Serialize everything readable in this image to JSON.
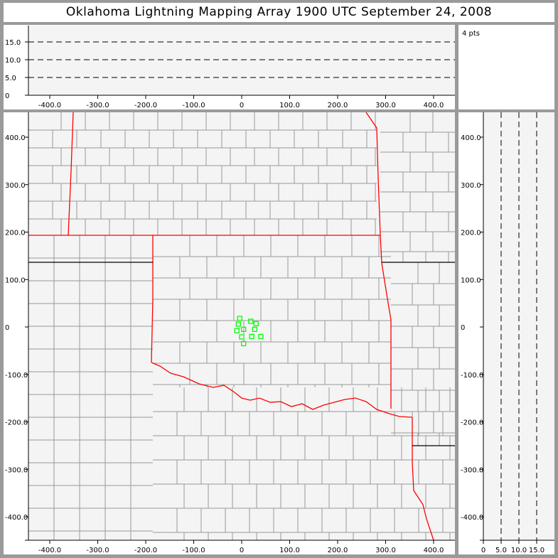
{
  "title": "Oklahoma Lightning Mapping Array   1900 UTC  September 24, 2008",
  "points_label": "4 pts",
  "colors": {
    "points": "#00ff00",
    "state_border": "#ff0000",
    "county_border": "#999999",
    "plot_bg": "#f4f4f4",
    "frame": "#9a9a9a"
  },
  "chart_data": [
    {
      "type": "scatter",
      "panel": "altitude-vs-east-west",
      "xlim": [
        -450,
        450
      ],
      "ylim": [
        0,
        20
      ],
      "xticks": [
        "-400.0",
        "-300.0",
        "-200.0",
        "-100.0",
        "0",
        "100.0",
        "200.0",
        "300.0",
        "400.0"
      ],
      "yticks": [
        "0",
        "5.0",
        "10.0",
        "15.0"
      ],
      "grid": "dashed horizontal at 5, 10, 15"
    },
    {
      "type": "scatter",
      "panel": "plan-view-map",
      "xlim": [
        -450,
        450
      ],
      "ylim": [
        -450,
        450
      ],
      "xticks": [
        "-400.0",
        "-300.0",
        "-200.0",
        "-100.0",
        "0",
        "100.0",
        "200.0",
        "300.0",
        "400.0"
      ],
      "yticks": [
        "400.0",
        "300.0",
        "200.0",
        "100.0",
        "0",
        "-100.0",
        "-200.0",
        "-300.0",
        "-400.0"
      ],
      "points": [
        [
          -4,
          18
        ],
        [
          19,
          12
        ],
        [
          -7,
          6
        ],
        [
          30,
          7
        ],
        [
          -10,
          -8
        ],
        [
          4,
          -5
        ],
        [
          27,
          -5
        ],
        [
          0,
          -21
        ],
        [
          21,
          -20
        ],
        [
          40,
          -20
        ],
        [
          4,
          -35
        ]
      ]
    },
    {
      "type": "scatter",
      "panel": "north-south-vs-altitude",
      "xlim": [
        0,
        20
      ],
      "ylim": [
        -450,
        450
      ],
      "xticks": [
        "0",
        "5.0",
        "10.0",
        "15.0"
      ],
      "yticks": [
        "400.0",
        "300.0",
        "200.0",
        "100.0",
        "0",
        "-100.0",
        "-200.0",
        "-300.0",
        "-400.0"
      ],
      "grid": "dashed vertical at 5, 10, 15"
    }
  ]
}
